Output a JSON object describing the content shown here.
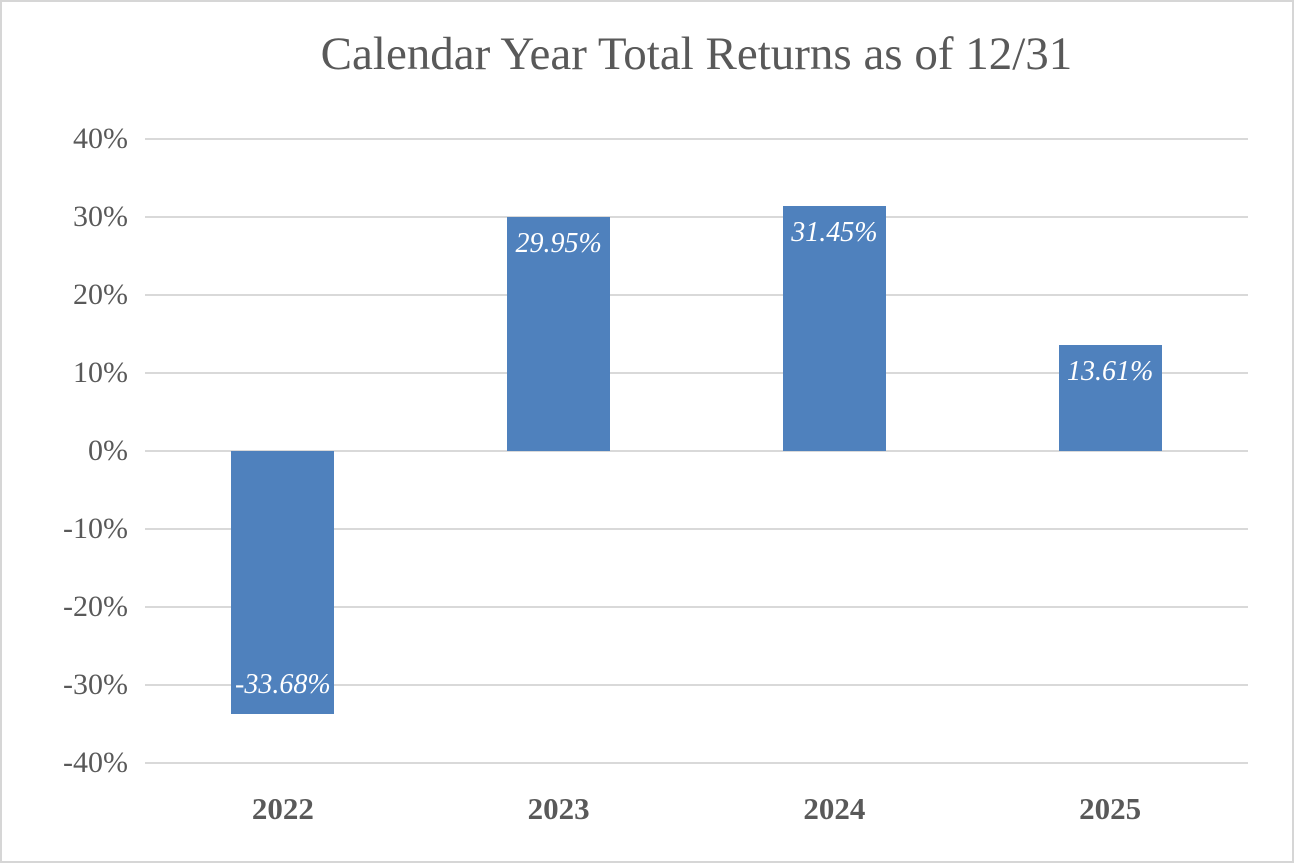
{
  "chart_data": {
    "type": "bar",
    "title": "Calendar Year Total Returns as of 12/31",
    "categories": [
      "2022",
      "2023",
      "2024",
      "2025"
    ],
    "values": [
      -33.68,
      29.95,
      31.45,
      13.61
    ],
    "value_labels": [
      "-33.68%",
      "29.95%",
      "31.45%",
      "13.61%"
    ],
    "xlabel": "",
    "ylabel": "",
    "ylim": [
      -40,
      40
    ],
    "y_ticks": [
      {
        "value": 40,
        "label": "40%"
      },
      {
        "value": 30,
        "label": "30%"
      },
      {
        "value": 20,
        "label": "20%"
      },
      {
        "value": 10,
        "label": "10%"
      },
      {
        "value": 0,
        "label": "0%"
      },
      {
        "value": -10,
        "label": "-10%"
      },
      {
        "value": -20,
        "label": "-20%"
      },
      {
        "value": -30,
        "label": "-30%"
      },
      {
        "value": -40,
        "label": "-40%"
      }
    ],
    "grid": "horizontal",
    "legend": "none",
    "colors": {
      "bar_fill": "#4f81bd",
      "bar_label_text": "#ffffff",
      "gridline": "#d9d9d9",
      "axis_text": "#595959",
      "title_text": "#595959",
      "background": "#ffffff",
      "border": "#d6d6d6"
    }
  }
}
